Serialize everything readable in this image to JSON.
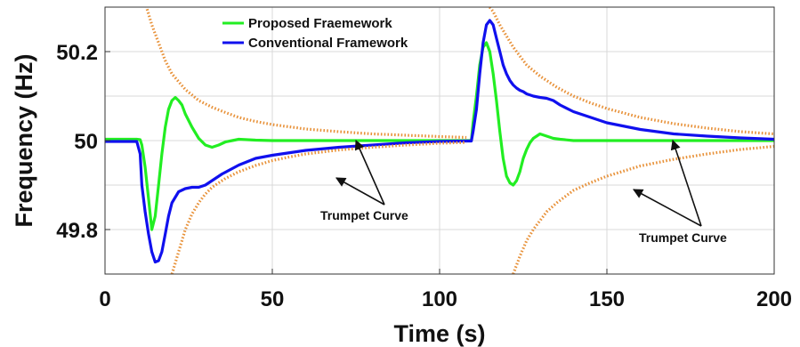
{
  "chart_data": {
    "type": "line",
    "title": "",
    "xlabel": "Time (s)",
    "ylabel": "Frequency (Hz)",
    "xlim": [
      0,
      200
    ],
    "ylim": [
      49.7,
      50.3
    ],
    "xticks": [
      0,
      50,
      100,
      150,
      200
    ],
    "yticks": [
      49.8,
      50,
      50.2
    ],
    "ytick_labels": [
      "49.8",
      "50",
      "50.2"
    ],
    "grid": true,
    "legend_position": "top-center",
    "colors": {
      "proposed": "#22ee22",
      "conventional": "#1010ee",
      "trumpet": "#e8923a"
    },
    "series": [
      {
        "name": "Proposed Fraemework",
        "color": "#22ee22",
        "x": [
          0,
          9.5,
          10.5,
          11,
          12,
          13,
          14,
          15,
          16,
          17,
          18,
          19,
          20,
          21,
          22,
          23,
          24,
          25,
          26,
          28,
          30,
          32,
          34,
          36,
          38,
          40,
          45,
          50,
          60,
          80,
          100,
          108,
          109.5,
          110,
          111,
          112,
          113,
          114,
          115,
          116,
          117,
          118,
          119,
          120,
          121,
          122,
          123,
          124,
          125,
          126,
          127,
          128,
          130,
          132,
          134,
          136,
          140,
          150,
          170,
          200
        ],
        "y": [
          50.003,
          50.003,
          50.002,
          49.99,
          49.94,
          49.87,
          49.8,
          49.83,
          49.9,
          49.97,
          50.03,
          50.07,
          50.09,
          50.097,
          50.09,
          50.08,
          50.06,
          50.045,
          50.03,
          50.005,
          49.99,
          49.985,
          49.99,
          49.997,
          50.0,
          50.003,
          50.001,
          50.0,
          50.0,
          50.0,
          50.0,
          50.0,
          50.0,
          50.04,
          50.1,
          50.17,
          50.21,
          50.22,
          50.2,
          50.15,
          50.09,
          50.02,
          49.96,
          49.92,
          49.905,
          49.9,
          49.91,
          49.93,
          49.96,
          49.98,
          49.995,
          50.005,
          50.015,
          50.01,
          50.005,
          50.003,
          50.0,
          50.0,
          50.0,
          50.0
        ]
      },
      {
        "name": "Conventional Framework",
        "color": "#1010ee",
        "x": [
          0,
          9.5,
          10.5,
          11,
          12,
          13,
          14,
          15,
          16,
          17,
          18,
          19,
          20,
          22,
          24,
          26,
          28,
          30,
          32,
          35,
          40,
          45,
          50,
          60,
          70,
          80,
          90,
          100,
          108,
          109.5,
          110,
          111,
          112,
          113,
          114,
          115,
          116,
          117,
          118,
          119,
          120,
          121,
          122,
          123,
          124,
          125,
          126,
          128,
          130,
          132,
          134,
          136,
          140,
          150,
          160,
          170,
          180,
          190,
          200
        ],
        "y": [
          49.998,
          49.998,
          49.97,
          49.9,
          49.84,
          49.79,
          49.75,
          49.727,
          49.73,
          49.75,
          49.79,
          49.83,
          49.86,
          49.885,
          49.892,
          49.895,
          49.895,
          49.9,
          49.91,
          49.925,
          49.945,
          49.96,
          49.967,
          49.978,
          49.985,
          49.99,
          49.995,
          49.998,
          49.999,
          49.999,
          50.02,
          50.07,
          50.15,
          50.22,
          50.26,
          50.27,
          50.26,
          50.23,
          50.2,
          50.17,
          50.15,
          50.135,
          50.125,
          50.118,
          50.113,
          50.11,
          50.105,
          50.1,
          50.097,
          50.095,
          50.09,
          50.08,
          50.065,
          50.04,
          50.025,
          50.015,
          50.01,
          50.006,
          50.003
        ]
      },
      {
        "name": "Trumpet Curve upper (event 1)",
        "color": "#e8923a",
        "x": [
          10,
          12,
          14,
          16,
          18,
          20,
          24,
          28,
          32,
          36,
          40,
          45,
          50,
          55,
          60,
          70,
          80,
          90,
          100,
          108
        ],
        "y": [
          50.4,
          50.31,
          50.26,
          50.22,
          50.18,
          50.15,
          50.115,
          50.09,
          50.075,
          50.063,
          50.052,
          50.043,
          50.036,
          50.031,
          50.026,
          50.02,
          50.015,
          50.012,
          50.009,
          50.007
        ]
      },
      {
        "name": "Trumpet Curve lower (event 1)",
        "color": "#e8923a",
        "x": [
          20,
          22,
          24,
          26,
          28,
          30,
          32,
          36,
          40,
          45,
          50,
          55,
          60,
          70,
          80,
          90,
          100,
          108
        ],
        "y": [
          49.7,
          49.75,
          49.8,
          49.835,
          49.86,
          49.88,
          49.895,
          49.915,
          49.93,
          49.944,
          49.955,
          49.963,
          49.97,
          49.979,
          49.985,
          49.99,
          49.994,
          49.996
        ]
      },
      {
        "name": "Trumpet Curve upper (event 2)",
        "color": "#e8923a",
        "x": [
          115,
          116,
          118,
          120,
          122,
          124,
          126,
          130,
          135,
          140,
          145,
          150,
          160,
          170,
          180,
          190,
          200
        ],
        "y": [
          50.3,
          50.29,
          50.26,
          50.235,
          50.21,
          50.19,
          50.17,
          50.145,
          50.12,
          50.1,
          50.085,
          50.072,
          50.052,
          50.038,
          50.028,
          50.02,
          50.015
        ]
      },
      {
        "name": "Trumpet Curve lower (event 2)",
        "color": "#e8923a",
        "x": [
          122,
          124,
          126,
          128,
          130,
          132,
          135,
          140,
          145,
          150,
          160,
          170,
          180,
          190,
          200
        ],
        "y": [
          49.7,
          49.74,
          49.775,
          49.8,
          49.82,
          49.84,
          49.86,
          49.888,
          49.905,
          49.92,
          49.943,
          49.958,
          49.97,
          49.98,
          49.987
        ]
      }
    ],
    "legend": [
      {
        "label": "Proposed Fraemework",
        "color": "#22ee22"
      },
      {
        "label": "Conventional Framework",
        "color": "#1010ee"
      }
    ],
    "annotations": [
      {
        "text": "Trumpet Curve",
        "x": 76,
        "y": 49.82
      },
      {
        "text": "Trumpet Curve",
        "x": 187,
        "y": 49.8
      }
    ]
  }
}
